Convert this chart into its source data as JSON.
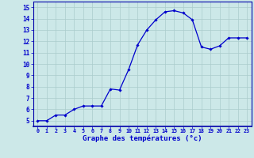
{
  "x": [
    0,
    1,
    2,
    3,
    4,
    5,
    6,
    7,
    8,
    9,
    10,
    11,
    12,
    13,
    14,
    15,
    16,
    17,
    18,
    19,
    20,
    21,
    22,
    23
  ],
  "y": [
    5.0,
    5.0,
    5.5,
    5.5,
    6.0,
    6.3,
    6.3,
    6.3,
    7.8,
    7.7,
    9.5,
    11.7,
    13.0,
    13.9,
    14.6,
    14.7,
    14.5,
    13.9,
    11.5,
    11.3,
    11.6,
    12.3,
    12.3,
    12.3
  ],
  "line_color": "#0000cc",
  "marker": "D",
  "marker_size": 1.8,
  "linewidth": 0.9,
  "xlim": [
    -0.5,
    23.5
  ],
  "ylim": [
    4.5,
    15.5
  ],
  "yticks": [
    5,
    6,
    7,
    8,
    9,
    10,
    11,
    12,
    13,
    14,
    15
  ],
  "xticks": [
    0,
    1,
    2,
    3,
    4,
    5,
    6,
    7,
    8,
    9,
    10,
    11,
    12,
    13,
    14,
    15,
    16,
    17,
    18,
    19,
    20,
    21,
    22,
    23
  ],
  "xlabel": "Graphe des températures (°c)",
  "bg_color": "#cce8e8",
  "grid_color": "#aacccc",
  "axis_color": "#0000aa",
  "tick_color": "#0000cc",
  "label_color": "#0000cc",
  "xticklabels": [
    "0",
    "1",
    "2",
    "3",
    "4",
    "5",
    "6",
    "7",
    "8",
    "9",
    "10",
    "11",
    "12",
    "13",
    "14",
    "15",
    "16",
    "17",
    "18",
    "19",
    "20",
    "21",
    "22",
    "23"
  ]
}
